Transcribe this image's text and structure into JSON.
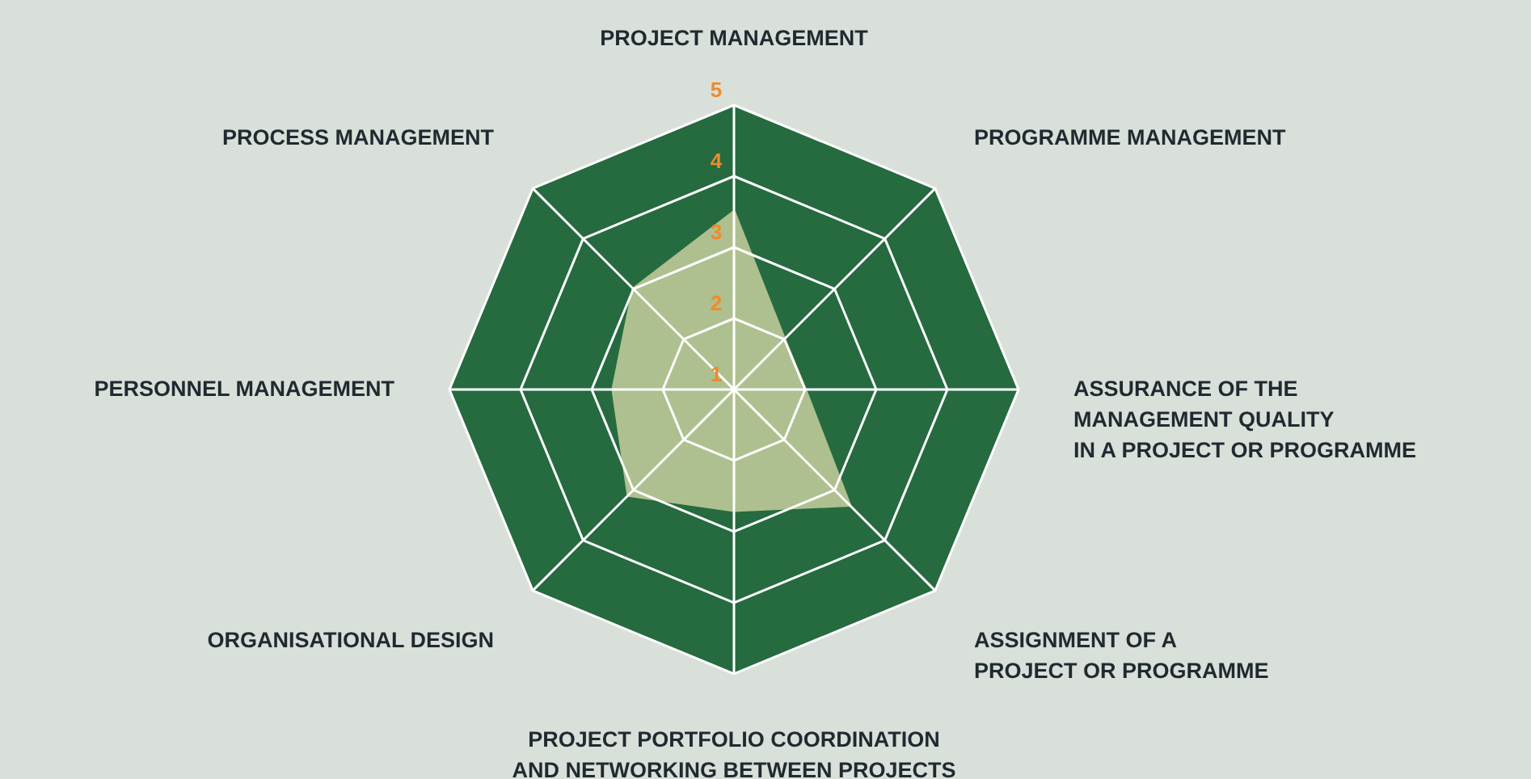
{
  "chart_data": {
    "type": "radar",
    "categories": [
      "PROJECT MANAGEMENT",
      "PROGRAMME MANAGEMENT",
      "ASSURANCE OF THE\nMANAGEMENT QUALITY\nIN A PROJECT OR PROGRAMME",
      "ASSIGNMENT OF A\nPROJECT OR PROGRAMME",
      "PROJECT PORTFOLIO COORDINATION\nAND NETWORKING BETWEEN PROJECTS",
      "ORGANISATIONAL DESIGN",
      "PERSONNEL MANAGEMENT",
      "PROCESS MANAGEMENT"
    ],
    "series": [
      {
        "color": "#aec08f",
        "values": [
          3.5,
          2.0,
          2.0,
          3.3,
          2.7,
          3.1,
          2.7,
          3.0
        ]
      }
    ],
    "ylim": [
      1,
      5
    ],
    "yticks": [
      1,
      2,
      3,
      4,
      5
    ],
    "grid": true
  }
}
